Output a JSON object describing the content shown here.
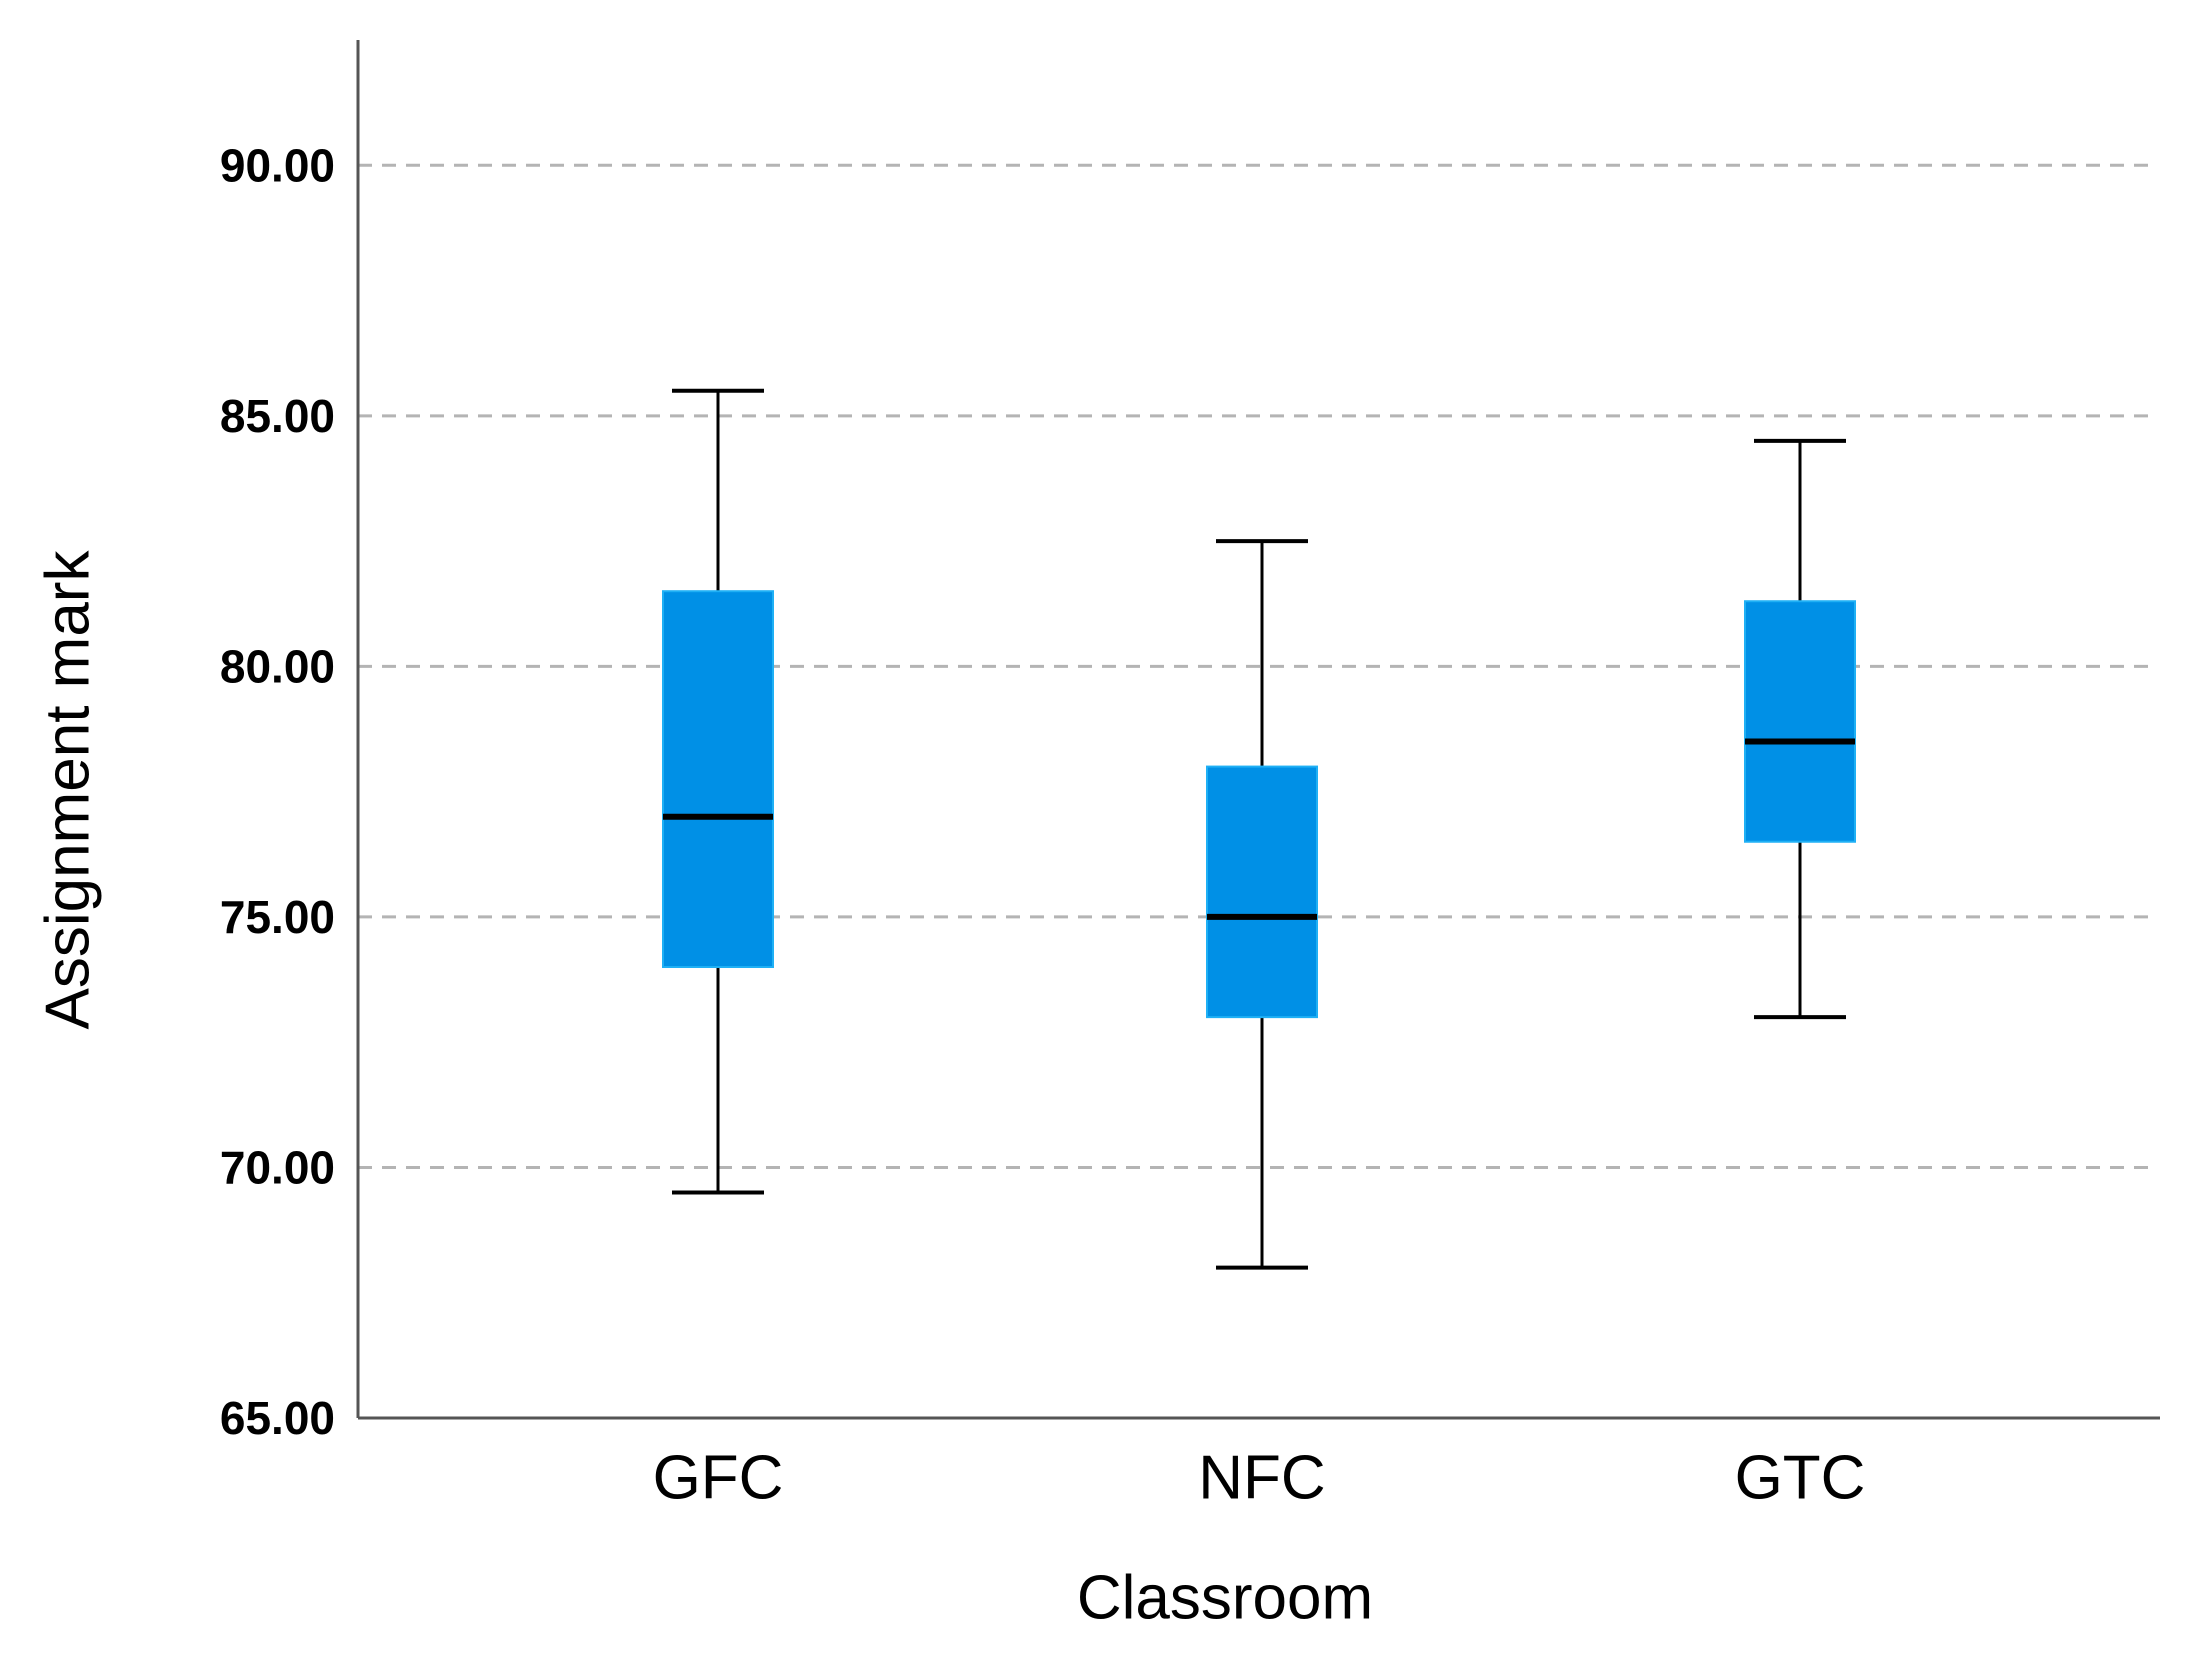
{
  "chart_data": {
    "type": "boxplot",
    "title": "",
    "xlabel": "Classroom",
    "ylabel": "Assignment mark",
    "ylim": [
      65,
      92.5
    ],
    "yticks": [
      65,
      70,
      75,
      80,
      85,
      90
    ],
    "ytick_labels": [
      "65.00",
      "70.00",
      "75.00",
      "80.00",
      "85.00",
      "90.00"
    ],
    "grid": true,
    "categories": [
      "GFC",
      "NFC",
      "GTC"
    ],
    "boxes": [
      {
        "category": "GFC",
        "min": 69.5,
        "q1": 74.0,
        "median": 77.0,
        "q3": 81.5,
        "max": 85.5
      },
      {
        "category": "NFC",
        "min": 68.0,
        "q1": 73.0,
        "median": 75.0,
        "q3": 78.0,
        "max": 82.5
      },
      {
        "category": "GTC",
        "min": 73.0,
        "q1": 76.5,
        "median": 78.5,
        "q3": 81.3,
        "max": 84.5
      }
    ],
    "colors": {
      "box_fill": "#0090e6",
      "box_edge": "#1fb0f5",
      "median": "#000000",
      "whisker": "#000000",
      "grid": "#b4b4b4",
      "axis": "#555555",
      "text": "#000000"
    }
  }
}
